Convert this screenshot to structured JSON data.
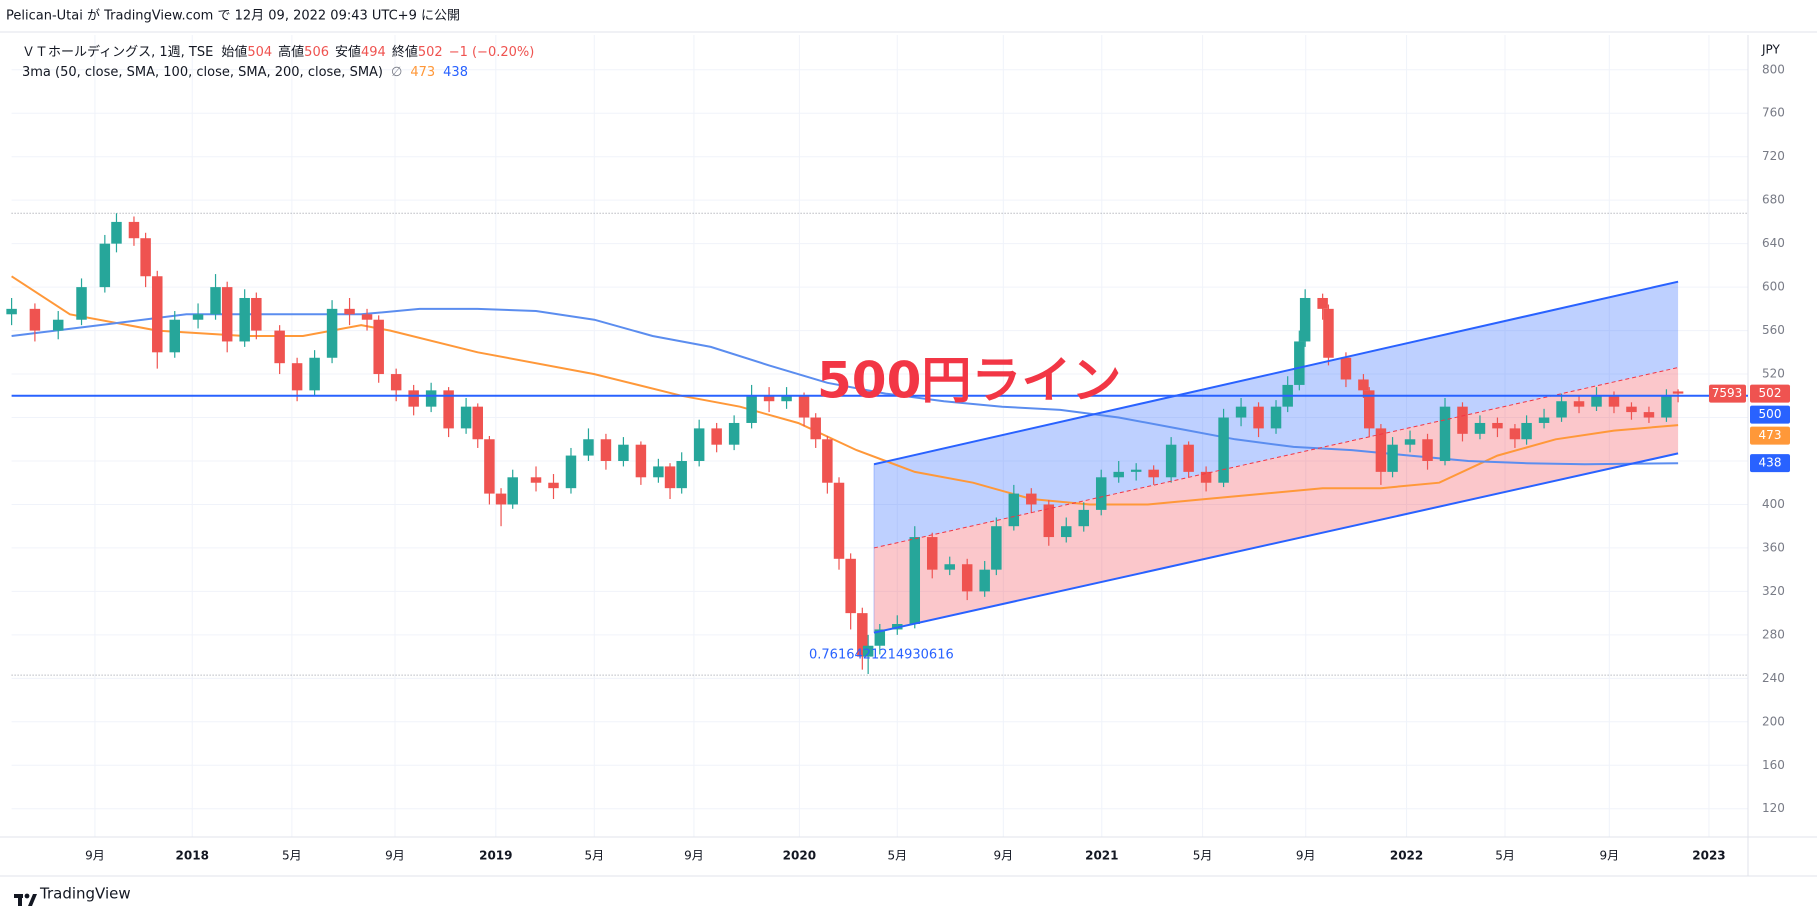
{
  "header": {
    "publisher": "Pelican-Utai が TradingView.com で 12月 09, 2022 09:43 UTC+9 に公開"
  },
  "chart_data": {
    "type": "candlestick",
    "symbol": "ＶＴホールディングス, 1週, TSE",
    "ohlc_legend": [
      {
        "label": "始値",
        "value": 504
      },
      {
        "label": "高値",
        "value": 506
      },
      {
        "label": "安値",
        "value": 494
      },
      {
        "label": "終値",
        "value": 502
      }
    ],
    "change": "−1 (−0.20%)",
    "indicator": {
      "name": "3ma (50, close, SMA, 100, close, SMA, 200, close, SMA)",
      "symbol": "∅"
    },
    "currency": "JPY",
    "xlim": [
      0,
      298
    ],
    "xticks": [
      {
        "value": 14.3,
        "label": "9月"
      },
      {
        "value": 31,
        "label": "2018"
      },
      {
        "value": 48.1,
        "label": "5月"
      },
      {
        "value": 65.8,
        "label": "9月"
      },
      {
        "value": 83.1,
        "label": "2019"
      },
      {
        "value": 100,
        "label": "5月"
      },
      {
        "value": 117.1,
        "label": "9月"
      },
      {
        "value": 135.2,
        "label": "2020"
      },
      {
        "value": 152,
        "label": "5月"
      },
      {
        "value": 170.2,
        "label": "9月"
      },
      {
        "value": 187.1,
        "label": "2021"
      },
      {
        "value": 204.4,
        "label": "5月"
      },
      {
        "value": 222.1,
        "label": "9月"
      },
      {
        "value": 239.4,
        "label": "2022"
      },
      {
        "value": 256.3,
        "label": "5月"
      },
      {
        "value": 274.2,
        "label": "9月"
      },
      {
        "value": 291.3,
        "label": "2023"
      }
    ],
    "ylim": [
      94,
      832
    ],
    "yticks": [
      120,
      160,
      200,
      240,
      280,
      320,
      360,
      400,
      440,
      480,
      520,
      560,
      600,
      640,
      680,
      720,
      760,
      800
    ],
    "up_color": "#26a69a",
    "down_color": "#ef5350",
    "candles": [
      [
        0,
        575,
        590,
        565,
        580
      ],
      [
        4,
        580,
        585,
        550,
        560
      ],
      [
        8,
        560,
        578,
        552,
        570
      ],
      [
        12,
        570,
        608,
        565,
        600
      ],
      [
        16,
        600,
        648,
        595,
        640
      ],
      [
        18,
        640,
        668,
        632,
        660
      ],
      [
        21,
        660,
        665,
        638,
        645
      ],
      [
        23,
        645,
        650,
        600,
        610
      ],
      [
        25,
        610,
        615,
        525,
        540
      ],
      [
        28,
        540,
        578,
        535,
        570
      ],
      [
        32,
        570,
        585,
        562,
        575
      ],
      [
        35,
        575,
        612,
        570,
        600
      ],
      [
        37,
        600,
        605,
        540,
        550
      ],
      [
        40,
        550,
        598,
        545,
        590
      ],
      [
        42,
        590,
        595,
        552,
        560
      ],
      [
        46,
        560,
        565,
        520,
        530
      ],
      [
        49,
        530,
        535,
        495,
        505
      ],
      [
        52,
        505,
        542,
        500,
        535
      ],
      [
        55,
        535,
        588,
        530,
        580
      ],
      [
        58,
        580,
        590,
        565,
        575
      ],
      [
        61,
        575,
        580,
        560,
        570
      ],
      [
        63,
        570,
        574,
        512,
        520
      ],
      [
        66,
        520,
        525,
        495,
        505
      ],
      [
        69,
        505,
        510,
        482,
        490
      ],
      [
        72,
        490,
        512,
        485,
        505
      ],
      [
        75,
        505,
        508,
        462,
        470
      ],
      [
        78,
        470,
        498,
        465,
        490
      ],
      [
        80,
        490,
        493,
        452,
        460
      ],
      [
        82,
        460,
        463,
        400,
        410
      ],
      [
        84,
        410,
        415,
        380,
        400
      ],
      [
        86,
        400,
        432,
        396,
        425
      ],
      [
        90,
        425,
        435,
        412,
        420
      ],
      [
        93,
        420,
        428,
        405,
        415
      ],
      [
        96,
        415,
        452,
        410,
        445
      ],
      [
        99,
        445,
        470,
        440,
        460
      ],
      [
        102,
        460,
        465,
        432,
        440
      ],
      [
        105,
        440,
        462,
        435,
        455
      ],
      [
        108,
        455,
        458,
        418,
        425
      ],
      [
        111,
        425,
        442,
        420,
        435
      ],
      [
        113,
        435,
        438,
        405,
        415
      ],
      [
        115,
        415,
        448,
        410,
        440
      ],
      [
        118,
        440,
        478,
        435,
        470
      ],
      [
        121,
        470,
        475,
        448,
        455
      ],
      [
        124,
        455,
        482,
        450,
        475
      ],
      [
        127,
        475,
        510,
        470,
        500
      ],
      [
        130,
        500,
        508,
        485,
        495
      ],
      [
        133,
        495,
        508,
        488,
        500
      ],
      [
        136,
        500,
        503,
        472,
        480
      ],
      [
        138,
        480,
        484,
        452,
        460
      ],
      [
        140,
        460,
        463,
        410,
        420
      ],
      [
        142,
        420,
        425,
        340,
        350
      ],
      [
        144,
        350,
        355,
        285,
        300
      ],
      [
        146,
        300,
        305,
        248,
        260
      ],
      [
        147,
        260,
        280,
        244,
        270
      ],
      [
        149,
        270,
        290,
        262,
        285
      ],
      [
        152,
        285,
        298,
        280,
        290
      ],
      [
        155,
        290,
        380,
        286,
        370
      ],
      [
        158,
        370,
        374,
        332,
        340
      ],
      [
        161,
        340,
        352,
        335,
        345
      ],
      [
        164,
        345,
        350,
        312,
        320
      ],
      [
        167,
        320,
        348,
        315,
        340
      ],
      [
        169,
        340,
        388,
        335,
        380
      ],
      [
        172,
        380,
        418,
        376,
        410
      ],
      [
        175,
        410,
        415,
        392,
        400
      ],
      [
        178,
        400,
        404,
        362,
        370
      ],
      [
        181,
        370,
        388,
        365,
        380
      ],
      [
        184,
        380,
        402,
        375,
        395
      ],
      [
        187,
        395,
        432,
        390,
        425
      ],
      [
        190,
        425,
        440,
        420,
        430
      ],
      [
        193,
        430,
        438,
        422,
        432
      ],
      [
        196,
        432,
        436,
        418,
        425
      ],
      [
        199,
        425,
        462,
        420,
        455
      ],
      [
        202,
        455,
        458,
        425,
        430
      ],
      [
        205,
        430,
        435,
        412,
        420
      ],
      [
        208,
        420,
        488,
        416,
        480
      ],
      [
        211,
        480,
        498,
        472,
        490
      ],
      [
        214,
        490,
        494,
        462,
        470
      ],
      [
        217,
        470,
        496,
        465,
        490
      ],
      [
        219,
        490,
        518,
        485,
        510
      ],
      [
        221,
        510,
        560,
        505,
        550
      ],
      [
        222,
        550,
        598,
        545,
        590
      ],
      [
        225,
        590,
        594,
        570,
        580
      ],
      [
        226,
        580,
        584,
        528,
        535
      ],
      [
        229,
        535,
        540,
        508,
        515
      ],
      [
        232,
        515,
        520,
        498,
        505
      ],
      [
        233,
        505,
        508,
        462,
        470
      ],
      [
        235,
        470,
        474,
        418,
        430
      ],
      [
        237,
        430,
        462,
        425,
        455
      ],
      [
        240,
        455,
        468,
        448,
        460
      ],
      [
        243,
        460,
        465,
        432,
        440
      ],
      [
        246,
        440,
        498,
        436,
        490
      ],
      [
        249,
        490,
        494,
        458,
        465
      ],
      [
        252,
        465,
        482,
        460,
        475
      ],
      [
        255,
        475,
        480,
        462,
        470
      ],
      [
        258,
        470,
        474,
        452,
        460
      ],
      [
        260,
        460,
        482,
        455,
        475
      ],
      [
        263,
        475,
        488,
        470,
        480
      ],
      [
        266,
        480,
        502,
        476,
        495
      ],
      [
        269,
        495,
        500,
        484,
        490
      ],
      [
        272,
        490,
        508,
        486,
        500
      ],
      [
        275,
        500,
        504,
        484,
        490
      ],
      [
        278,
        490,
        494,
        478,
        485
      ],
      [
        281,
        485,
        490,
        475,
        480
      ],
      [
        284,
        480,
        506,
        476,
        500
      ],
      [
        286,
        504,
        506,
        494,
        502
      ]
    ],
    "series": [
      {
        "color": "#ff9839",
        "x": [
          0,
          10,
          25,
          40,
          50,
          60,
          65,
          80,
          100,
          115,
          125,
          135,
          145,
          155,
          165,
          175,
          185,
          195,
          205,
          215,
          225,
          235,
          245,
          255,
          265,
          275,
          286
        ],
        "values": [
          610,
          575,
          560,
          555,
          555,
          565,
          560,
          540,
          520,
          500,
          490,
          475,
          450,
          430,
          420,
          405,
          400,
          400,
          405,
          410,
          415,
          415,
          420,
          445,
          460,
          468,
          473
        ]
      },
      {
        "color": "#5b8def",
        "x": [
          0,
          15,
          30,
          50,
          60,
          70,
          80,
          90,
          100,
          110,
          120,
          130,
          140,
          150,
          160,
          170,
          180,
          190,
          200,
          210,
          220,
          230,
          240,
          250,
          260,
          270,
          286
        ],
        "values": [
          555,
          565,
          575,
          575,
          575,
          580,
          580,
          578,
          570,
          555,
          545,
          528,
          512,
          502,
          495,
          490,
          487,
          480,
          470,
          460,
          453,
          450,
          445,
          440,
          438,
          437,
          438
        ]
      }
    ],
    "hline": {
      "value": 500,
      "color": "#2962ff"
    },
    "range_lines": [
      668,
      243
    ],
    "channel": {
      "x": [
        148,
        286
      ],
      "upper": [
        437,
        605
      ],
      "middle": [
        360,
        526
      ],
      "lower": [
        282,
        447
      ]
    },
    "channel_label": "0.7616421214930616",
    "annotation": {
      "text": "500円ライン",
      "color": "#f23645"
    },
    "timer": 7593
  },
  "footer": {
    "brand": "TradingView"
  }
}
